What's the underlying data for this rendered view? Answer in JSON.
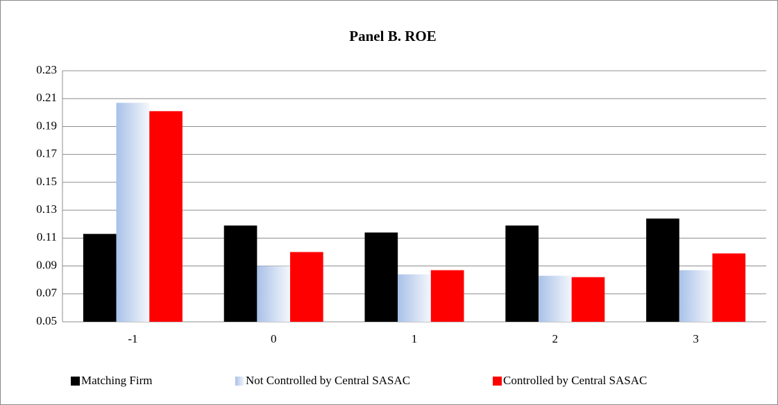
{
  "chart_data": {
    "type": "bar",
    "title": "Panel B. ROE",
    "categories": [
      "-1",
      "0",
      "1",
      "2",
      "3"
    ],
    "series": [
      {
        "name": "Matching Firm",
        "color": "#000000",
        "values": [
          0.113,
          0.119,
          0.114,
          0.119,
          0.124
        ]
      },
      {
        "name": "Not Controlled by Central SASAC",
        "color": "#a9c1e8",
        "values": [
          0.207,
          0.09,
          0.084,
          0.083,
          0.087
        ]
      },
      {
        "name": "Controlled by Central SASAC",
        "color": "#ff0000",
        "values": [
          0.201,
          0.1,
          0.087,
          0.082,
          0.099
        ]
      }
    ],
    "ylim": [
      0.05,
      0.23
    ],
    "yticks": [
      0.05,
      0.07,
      0.09,
      0.11,
      0.13,
      0.15,
      0.17,
      0.19,
      0.21,
      0.23
    ],
    "grid": true,
    "legend": "bottom"
  }
}
